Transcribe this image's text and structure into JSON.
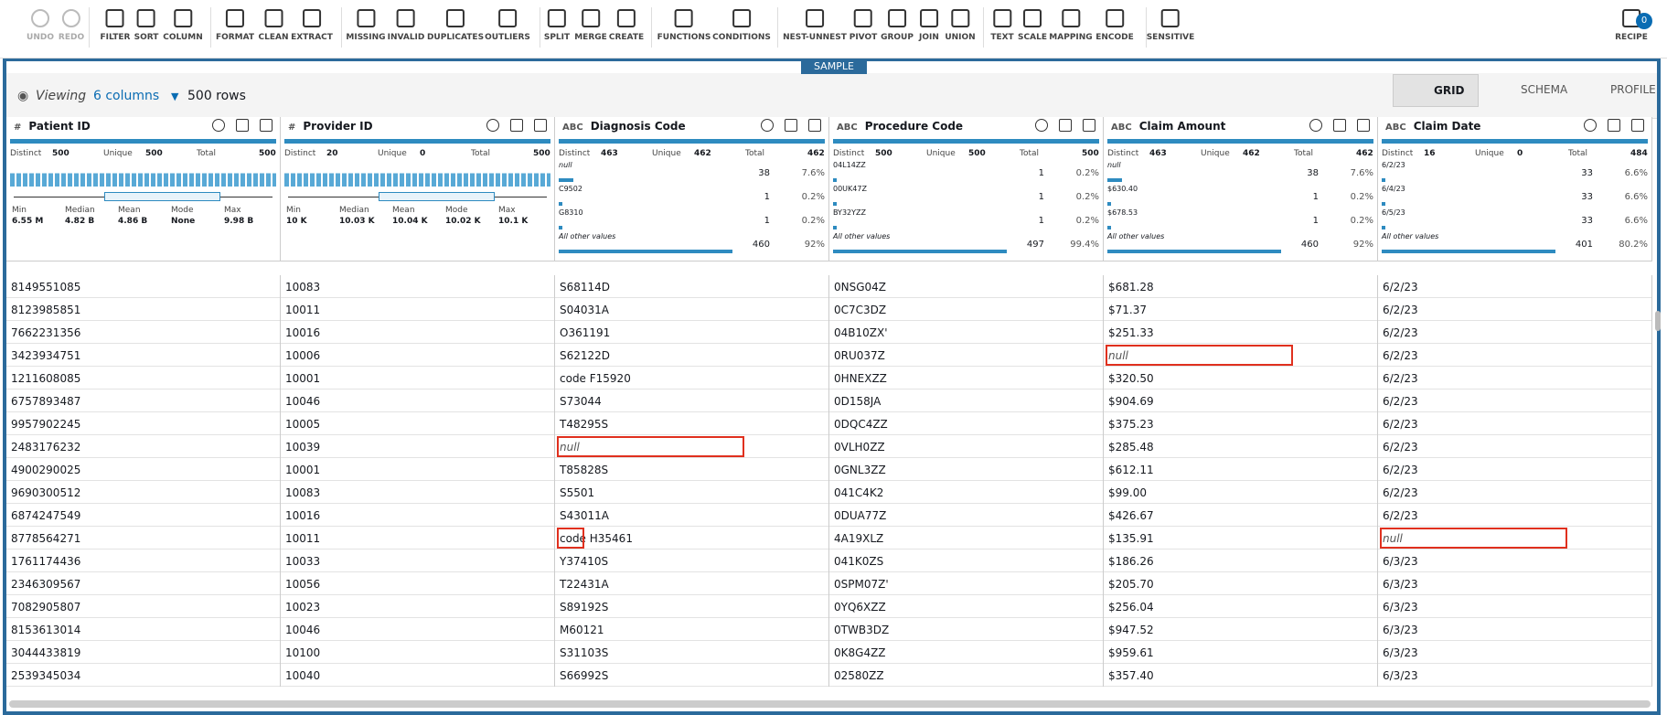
{
  "toolbar": {
    "items": [
      {
        "label": "UNDO"
      },
      {
        "label": "REDO"
      },
      {
        "label": "FILTER"
      },
      {
        "label": "SORT"
      },
      {
        "label": "COLUMN"
      },
      {
        "label": "FORMAT"
      },
      {
        "label": "CLEAN"
      },
      {
        "label": "EXTRACT"
      },
      {
        "label": "MISSING"
      },
      {
        "label": "INVALID"
      },
      {
        "label": "DUPLICATES"
      },
      {
        "label": "OUTLIERS"
      },
      {
        "label": "SPLIT"
      },
      {
        "label": "MERGE"
      },
      {
        "label": "CREATE"
      },
      {
        "label": "FUNCTIONS"
      },
      {
        "label": "CONDITIONS"
      },
      {
        "label": "NEST-UNNEST"
      },
      {
        "label": "PIVOT"
      },
      {
        "label": "GROUP"
      },
      {
        "label": "JOIN"
      },
      {
        "label": "UNION"
      },
      {
        "label": "TEXT"
      },
      {
        "label": "SCALE"
      },
      {
        "label": "MAPPING"
      },
      {
        "label": "ENCODE"
      },
      {
        "label": "SENSITIVE"
      }
    ],
    "recipe": "RECIPE",
    "recipe_count": "0"
  },
  "sample": "SAMPLE",
  "view": {
    "viewing": "Viewing",
    "columns_link": "6 columns",
    "rows": "500 rows",
    "tabs": [
      "GRID",
      "SCHEMA",
      "PROFILE"
    ]
  },
  "columns": [
    {
      "type": "#",
      "name": "Patient ID",
      "stats": [
        {
          "label": "Distinct",
          "value": "500"
        },
        {
          "label": "Unique",
          "value": "500"
        },
        {
          "label": "Total",
          "value": "500"
        }
      ],
      "summary": [
        {
          "label": "Min",
          "value": "6.55 M"
        },
        {
          "label": "Median",
          "value": "4.82 B"
        },
        {
          "label": "Mean",
          "value": "4.86 B"
        },
        {
          "label": "Mode",
          "value": "None"
        },
        {
          "label": "Max",
          "value": "9.98 B"
        }
      ]
    },
    {
      "type": "#",
      "name": "Provider ID",
      "stats": [
        {
          "label": "Distinct",
          "value": "20"
        },
        {
          "label": "Unique",
          "value": "0"
        },
        {
          "label": "Total",
          "value": "500"
        }
      ],
      "summary": [
        {
          "label": "Min",
          "value": "10 K"
        },
        {
          "label": "Median",
          "value": "10.03 K"
        },
        {
          "label": "Mean",
          "value": "10.04 K"
        },
        {
          "label": "Mode",
          "value": "10.02 K"
        },
        {
          "label": "Max",
          "value": "10.1 K"
        }
      ]
    },
    {
      "type": "ABC",
      "name": "Diagnosis Code",
      "stats": [
        {
          "label": "Distinct",
          "value": "463"
        },
        {
          "label": "Unique",
          "value": "462"
        },
        {
          "label": "Total",
          "value": "462"
        }
      ],
      "top_values": [
        {
          "label": "null",
          "count": "38",
          "pct": "7.6%"
        },
        {
          "label": "C9502",
          "count": "1",
          "pct": "0.2%"
        },
        {
          "label": "G8310",
          "count": "1",
          "pct": "0.2%"
        },
        {
          "label": "All other values",
          "count": "460",
          "pct": "92%"
        }
      ]
    },
    {
      "type": "ABC",
      "name": "Procedure Code",
      "stats": [
        {
          "label": "Distinct",
          "value": "500"
        },
        {
          "label": "Unique",
          "value": "500"
        },
        {
          "label": "Total",
          "value": "500"
        }
      ],
      "top_values": [
        {
          "label": "04L14ZZ",
          "count": "1",
          "pct": "0.2%"
        },
        {
          "label": "00UK47Z",
          "count": "1",
          "pct": "0.2%"
        },
        {
          "label": "BY32YZZ",
          "count": "1",
          "pct": "0.2%"
        },
        {
          "label": "All other values",
          "count": "497",
          "pct": "99.4%"
        }
      ]
    },
    {
      "type": "ABC",
      "name": "Claim Amount",
      "stats": [
        {
          "label": "Distinct",
          "value": "463"
        },
        {
          "label": "Unique",
          "value": "462"
        },
        {
          "label": "Total",
          "value": "462"
        }
      ],
      "top_values": [
        {
          "label": "null",
          "count": "38",
          "pct": "7.6%"
        },
        {
          "label": "$630.40",
          "count": "1",
          "pct": "0.2%"
        },
        {
          "label": "$678.53",
          "count": "1",
          "pct": "0.2%"
        },
        {
          "label": "All other values",
          "count": "460",
          "pct": "92%"
        }
      ]
    },
    {
      "type": "ABC",
      "name": "Claim Date",
      "stats": [
        {
          "label": "Distinct",
          "value": "16"
        },
        {
          "label": "Unique",
          "value": "0"
        },
        {
          "label": "Total",
          "value": "484"
        }
      ],
      "top_values": [
        {
          "label": "6/2/23",
          "count": "33",
          "pct": "6.6%"
        },
        {
          "label": "6/4/23",
          "count": "33",
          "pct": "6.6%"
        },
        {
          "label": "6/5/23",
          "count": "33",
          "pct": "6.6%"
        },
        {
          "label": "All other values",
          "count": "401",
          "pct": "80.2%"
        }
      ]
    }
  ],
  "rows": [
    [
      "8149551085",
      "10083",
      "S68114D",
      "0NSG04Z",
      "$681.28",
      "6/2/23"
    ],
    [
      "8123985851",
      "10011",
      "S04031A",
      "0C7C3DZ",
      "$71.37",
      "6/2/23"
    ],
    [
      "7662231356",
      "10016",
      "O361191",
      "04B10ZX'",
      "$251.33",
      "6/2/23"
    ],
    [
      "3423934751",
      "10006",
      "S62122D",
      "0RU037Z",
      "null",
      "6/2/23"
    ],
    [
      "1211608085",
      "10001",
      "code F15920",
      "0HNEXZZ",
      "$320.50",
      "6/2/23"
    ],
    [
      "6757893487",
      "10046",
      "S73044",
      "0D158JA",
      "$904.69",
      "6/2/23"
    ],
    [
      "9957902245",
      "10005",
      "T48295S",
      "0DQC4ZZ",
      "$375.23",
      "6/2/23"
    ],
    [
      "2483176232",
      "10039",
      "null",
      "0VLH0ZZ",
      "$285.48",
      "6/2/23"
    ],
    [
      "4900290025",
      "10001",
      "T85828S",
      "0GNL3ZZ",
      "$612.11",
      "6/2/23"
    ],
    [
      "9690300512",
      "10083",
      "S5501",
      "041C4K2",
      "$99.00",
      "6/2/23"
    ],
    [
      "6874247549",
      "10016",
      "S43011A",
      "0DUA77Z",
      "$426.67",
      "6/2/23"
    ],
    [
      "8778564271",
      "10011",
      "code H35461",
      "4A19XLZ",
      "$135.91",
      "null"
    ],
    [
      "1761174436",
      "10033",
      "Y37410S",
      "041K0ZS",
      "$186.26",
      "6/3/23"
    ],
    [
      "2346309567",
      "10056",
      "T22431A",
      "0SPM07Z'",
      "$205.70",
      "6/3/23"
    ],
    [
      "7082905807",
      "10023",
      "S89192S",
      "0YQ6XZZ",
      "$256.04",
      "6/3/23"
    ],
    [
      "8153613014",
      "10046",
      "M60121",
      "0TWB3DZ",
      "$947.52",
      "6/3/23"
    ],
    [
      "3044433819",
      "10100",
      "S31103S",
      "0K8G4ZZ",
      "$959.61",
      "6/3/23"
    ],
    [
      "2539345034",
      "10040",
      "S66992S",
      "02580ZZ",
      "$357.40",
      "6/3/23"
    ]
  ]
}
